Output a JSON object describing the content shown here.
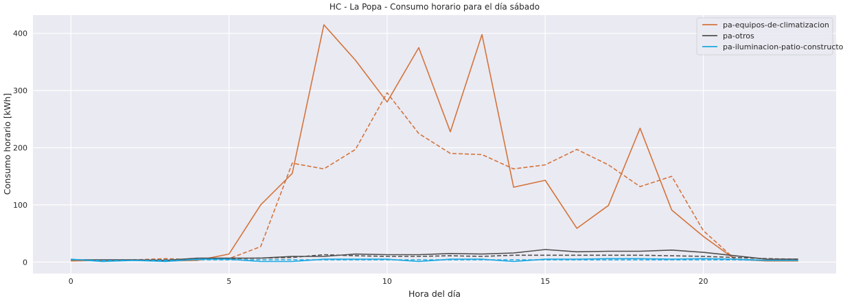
{
  "chart_data": {
    "type": "line",
    "title": "HC - La Popa - Consumo horario para el día sábado",
    "xlabel": "Hora del día",
    "ylabel": "Consumo horario [kWh]",
    "xlim": [
      -1.2,
      24.2
    ],
    "ylim": [
      -20,
      432
    ],
    "xticks": [
      0,
      5,
      10,
      15,
      20
    ],
    "yticks": [
      0,
      100,
      200,
      300,
      400
    ],
    "grid": true,
    "legend_position": "top-right",
    "x": [
      0,
      1,
      2,
      3,
      4,
      5,
      6,
      7,
      8,
      9,
      10,
      11,
      12,
      13,
      14,
      15,
      16,
      17,
      18,
      19,
      20,
      21,
      22,
      23
    ],
    "series": [
      {
        "name": "pa-equipos-de-climatizacion",
        "color": "#d4733a",
        "style": "solid",
        "values": [
          2,
          3,
          3,
          2,
          3,
          14,
          100,
          155,
          415,
          353,
          280,
          375,
          228,
          398,
          131,
          143,
          59,
          99,
          234,
          91,
          45,
          5,
          2,
          2
        ]
      },
      {
        "name": "pa-equipos-de-climatizacion",
        "color": "#d4733a",
        "style": "dashed",
        "values": [
          3,
          3,
          4,
          6,
          4,
          6,
          27,
          173,
          163,
          197,
          296,
          225,
          190,
          188,
          163,
          170,
          197,
          170,
          132,
          150,
          55,
          5,
          3,
          3
        ]
      },
      {
        "name": "pa-otros",
        "color": "#4f4f4f",
        "style": "solid",
        "values": [
          4,
          4,
          4,
          3,
          7,
          7,
          7,
          10,
          10,
          14,
          13,
          13,
          15,
          14,
          16,
          22,
          18,
          19,
          19,
          21,
          17,
          11,
          5,
          5
        ]
      },
      {
        "name": "pa-otros",
        "color": "#4f4f4f",
        "style": "dashed",
        "values": [
          4,
          4,
          4,
          4,
          6,
          6,
          7,
          8,
          13,
          11,
          10,
          10,
          11,
          10,
          12,
          12,
          12,
          12,
          12,
          11,
          10,
          8,
          6,
          5
        ]
      },
      {
        "name": "pa-iluminacion-patio-constructor",
        "color": "#1aa7e0",
        "style": "solid",
        "values": [
          5,
          1,
          3,
          1,
          5,
          5,
          1,
          1,
          5,
          5,
          5,
          1,
          5,
          5,
          1,
          5,
          5,
          6,
          6,
          5,
          6,
          5,
          3,
          3
        ]
      },
      {
        "name": "pa-iluminacion-patio-constructor",
        "color": "#1aa7e0",
        "style": "dashed",
        "values": [
          4,
          3,
          3,
          3,
          4,
          4,
          4,
          4,
          4,
          4,
          4,
          4,
          4,
          4,
          4,
          4,
          4,
          4,
          4,
          4,
          4,
          4,
          3,
          3
        ]
      }
    ],
    "legend": [
      {
        "label": "pa-equipos-de-climatizacion",
        "color": "#d4733a"
      },
      {
        "label": "pa-otros",
        "color": "#4f4f4f"
      },
      {
        "label": "pa-iluminacion-patio-constructor",
        "color": "#1aa7e0"
      }
    ]
  }
}
